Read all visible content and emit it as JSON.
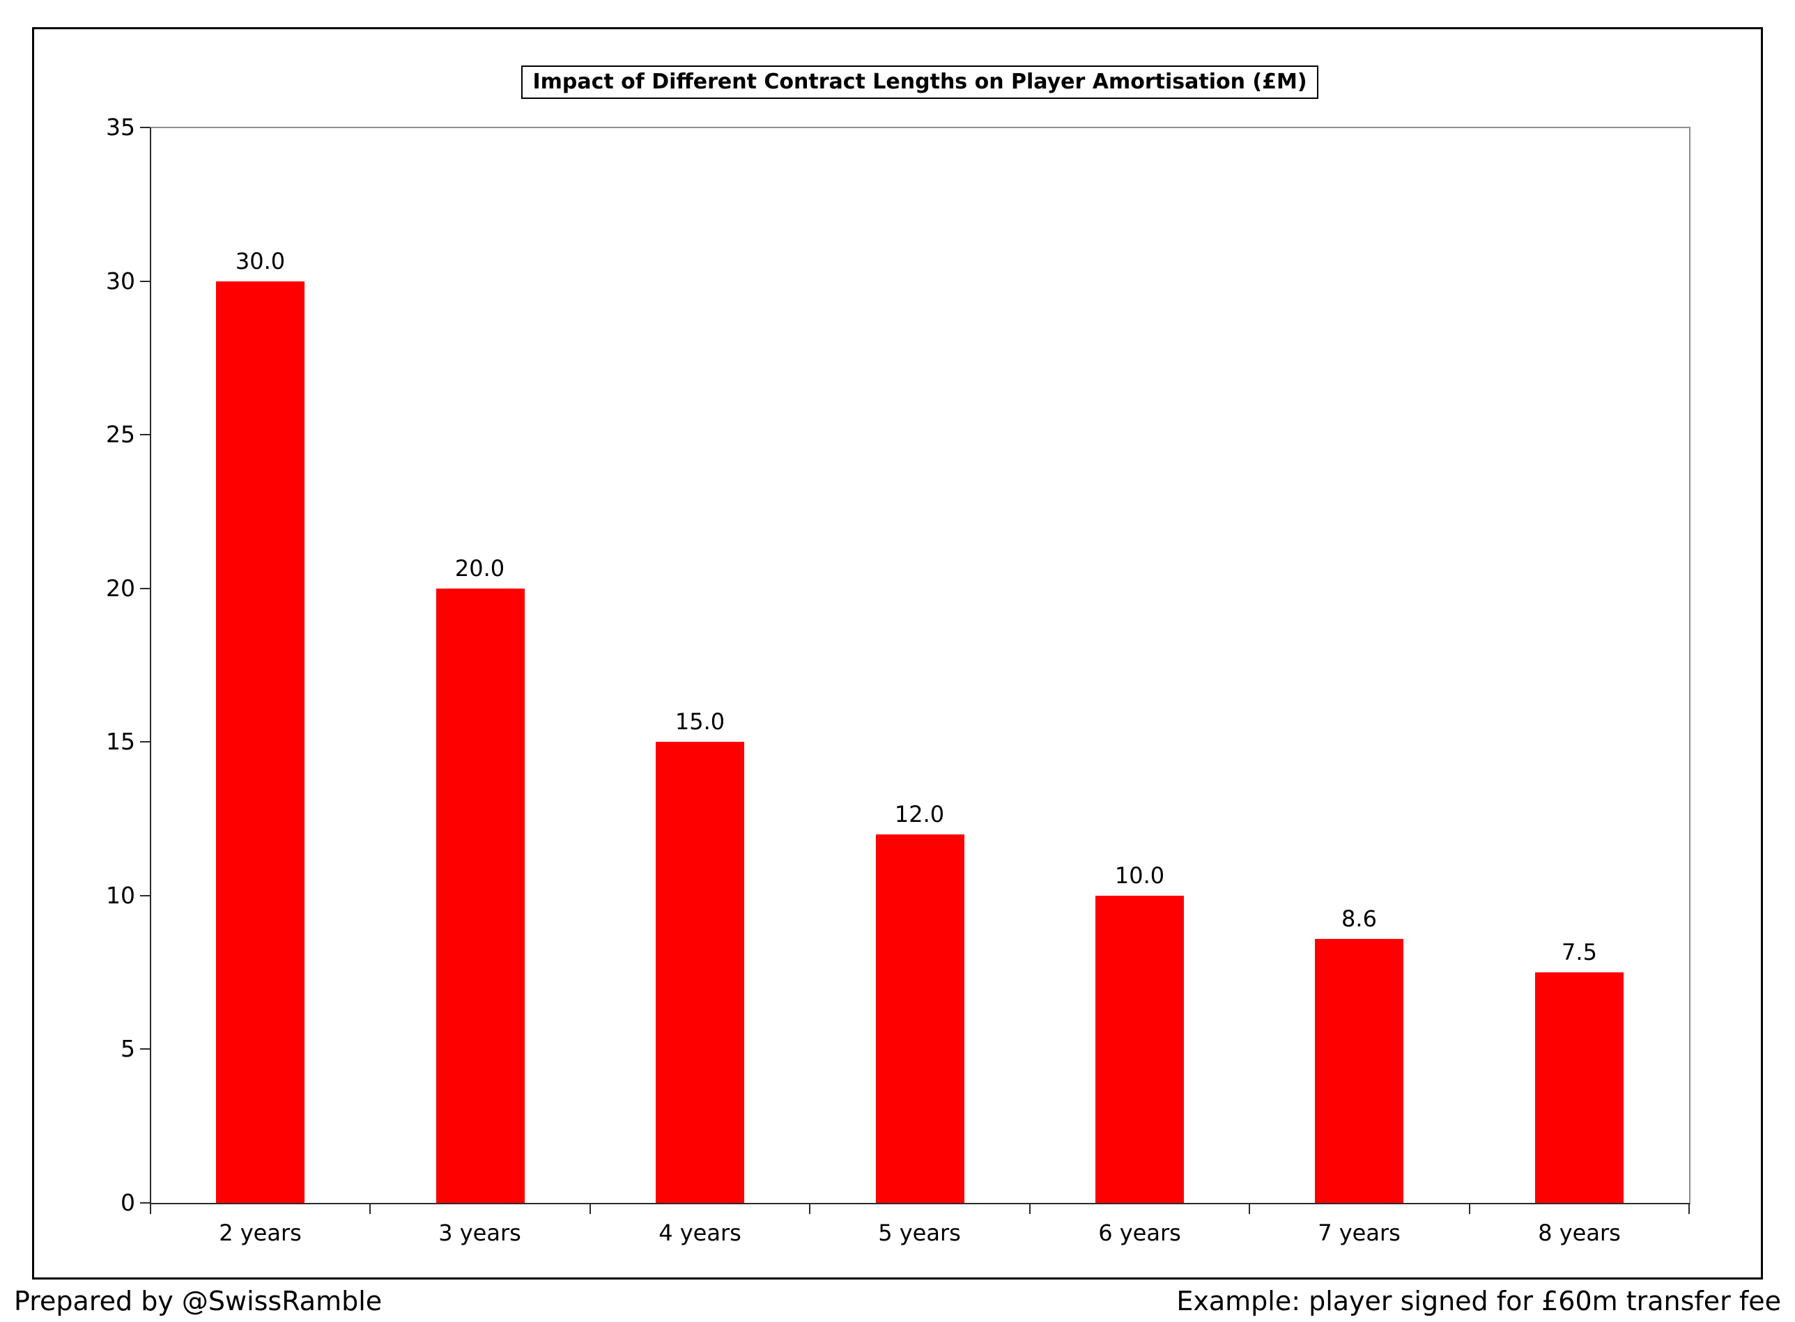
{
  "chart_data": {
    "type": "bar",
    "title": "Impact of Different Contract Lengths on Player Amortisation (£M)",
    "categories": [
      "2 years",
      "3 years",
      "4 years",
      "5 years",
      "6 years",
      "7 years",
      "8 years"
    ],
    "values": [
      30.0,
      20.0,
      15.0,
      12.0,
      10.0,
      8.6,
      7.5
    ],
    "value_labels": [
      "30.0",
      "20.0",
      "15.0",
      "12.0",
      "10.0",
      "8.6",
      "7.5"
    ],
    "xlabel": "",
    "ylabel": "",
    "ylim": [
      0,
      35
    ],
    "y_ticks": [
      0,
      5,
      10,
      15,
      20,
      25,
      30,
      35
    ],
    "grid": false,
    "legend": false,
    "bar_color": "#FF0000",
    "axis_color": "#2b2b2b",
    "plot_border_color": "#8c8c8c"
  },
  "footer": {
    "left": "Prepared by @SwissRamble",
    "right": "Example: player signed for £60m transfer fee"
  }
}
